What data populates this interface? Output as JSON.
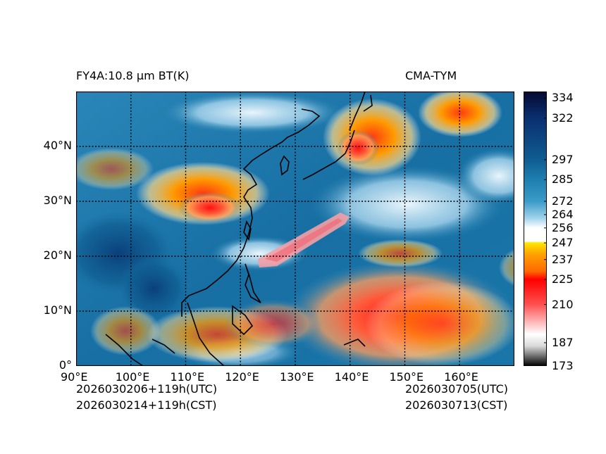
{
  "header": {
    "title_left": "FY4A:10.8 µm BT(K)",
    "title_right": "CMA-TYM"
  },
  "footer": {
    "init_utc": "2026030206+119h(UTC)",
    "init_cst": "2026030214+119h(CST)",
    "valid_utc": "2026030705(UTC)",
    "valid_cst": "2026030713(CST)"
  },
  "map": {
    "lon_ticks": [
      "90°E",
      "100°E",
      "110°E",
      "120°E",
      "130°E",
      "140°E",
      "150°E",
      "160°E"
    ],
    "lat_ticks": [
      "0°",
      "10°N",
      "20°N",
      "30°N",
      "40°N"
    ],
    "lon_values": [
      90,
      100,
      110,
      120,
      130,
      140,
      150,
      160
    ],
    "lat_values": [
      0,
      10,
      20,
      30,
      40
    ],
    "lon_range": [
      90,
      170
    ],
    "lat_range": [
      0,
      50
    ]
  },
  "colorbar": {
    "labels": [
      "334",
      "322",
      "297",
      "285",
      "272",
      "264",
      "256",
      "247",
      "237",
      "225",
      "210",
      "187",
      "173"
    ],
    "values": [
      334,
      322,
      297,
      285,
      272,
      264,
      256,
      247,
      237,
      225,
      210,
      187,
      173
    ],
    "range": [
      173,
      338
    ],
    "stops": [
      {
        "v": 173,
        "c": "#000000"
      },
      {
        "v": 185,
        "c": "#d9d9d9"
      },
      {
        "v": 192,
        "c": "#ffffff"
      },
      {
        "v": 210,
        "c": "#ff5050"
      },
      {
        "v": 225,
        "c": "#ff0000"
      },
      {
        "v": 230,
        "c": "#ff6a00"
      },
      {
        "v": 240,
        "c": "#ffa000"
      },
      {
        "v": 247,
        "c": "#ffe600"
      },
      {
        "v": 248,
        "c": "#ffffff"
      },
      {
        "v": 256,
        "c": "#ffffff"
      },
      {
        "v": 262,
        "c": "#9fd2ea"
      },
      {
        "v": 272,
        "c": "#3a9bc8"
      },
      {
        "v": 285,
        "c": "#1f7fb0"
      },
      {
        "v": 297,
        "c": "#0f5d92"
      },
      {
        "v": 322,
        "c": "#0a2f70"
      },
      {
        "v": 338,
        "c": "#050a30"
      }
    ]
  },
  "colors": {
    "ocean": "#176fa3",
    "land_dark": "#0d4f8a",
    "cold_red": "#ff2020",
    "cold_orange": "#ff9a00",
    "grid": "#000000"
  }
}
